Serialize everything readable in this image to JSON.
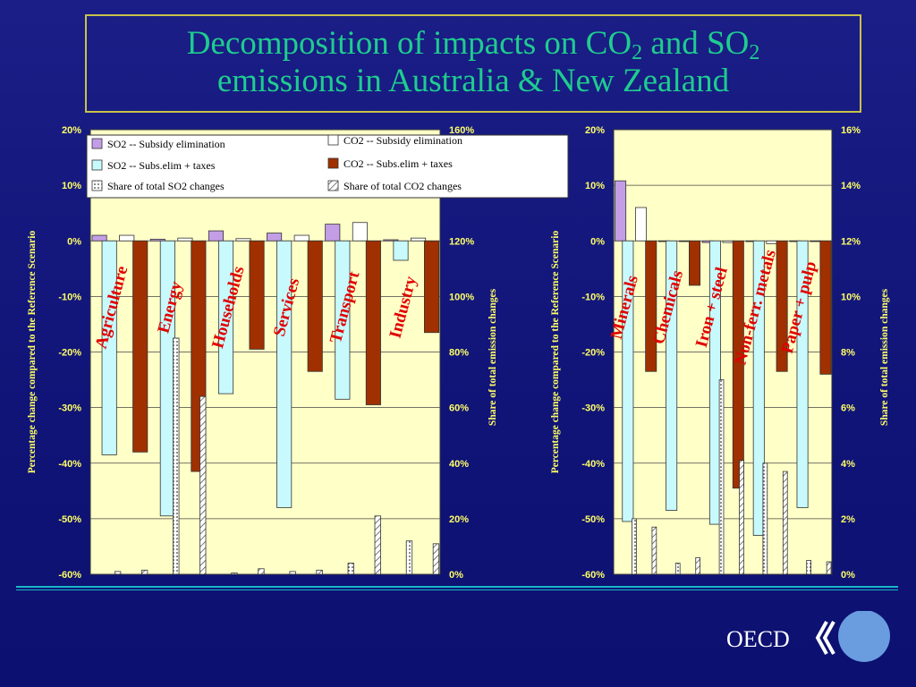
{
  "title": {
    "line1_pre": "Decomposition of impacts on CO",
    "line1_sub1": "2",
    "line1_mid": " and SO",
    "line1_sub2": "2",
    "line2": "emissions in Australia & New Zealand"
  },
  "logo_text": "OECD",
  "colors": {
    "title": "#1fcc8f",
    "title_border": "#c9c24a",
    "plot_bg": "#ffffc8",
    "axis_text": "#ffff66",
    "category_label": "#e00000",
    "so2_subsidy": "#c39ee6",
    "so2_taxes": "#c8fafd",
    "co2_subsidy": "#ffffff",
    "co2_taxes": "#a03000"
  },
  "chart_data": [
    {
      "type": "bar",
      "ylabel": "Percentage change compared to the Reference Scenario",
      "y2label": "Share of total emission changes",
      "ylim": [
        -60,
        20
      ],
      "y2lim": [
        0,
        160
      ],
      "yticks": [
        "20%",
        "10%",
        "0%",
        "-10%",
        "-20%",
        "-30%",
        "-40%",
        "-50%",
        "-60%"
      ],
      "y2ticks": [
        "160%",
        "140%",
        "120%",
        "100%",
        "80%",
        "60%",
        "40%",
        "20%",
        "0%"
      ],
      "legend": "top",
      "categories": [
        "Agriculture",
        "Energy",
        "Households",
        "Services",
        "Transport",
        "Industry"
      ],
      "series": [
        {
          "name": "SO2 -- Subsidy elimination",
          "axis": "left",
          "values": [
            1.0,
            0.3,
            1.8,
            1.4,
            3.0,
            0.2
          ]
        },
        {
          "name": "SO2 -- Subs.elim + taxes",
          "axis": "left",
          "values": [
            -38.5,
            -49.5,
            -27.5,
            -48,
            -28.5,
            -3.5
          ]
        },
        {
          "name": "Share of total SO2 changes",
          "axis": "right",
          "values": [
            1,
            85,
            0.5,
            1,
            4,
            12
          ]
        },
        {
          "name": "CO2 -- Subsidy elimination",
          "axis": "left",
          "values": [
            1.0,
            0.5,
            0.4,
            1.0,
            3.3,
            0.5
          ]
        },
        {
          "name": "CO2 -- Subs.elim + taxes",
          "axis": "left",
          "values": [
            -38,
            -41.5,
            -19.5,
            -23.5,
            -29.5,
            -16.5
          ]
        },
        {
          "name": "Share of total CO2 changes",
          "axis": "right",
          "values": [
            1.5,
            64,
            2,
            1.5,
            21,
            11
          ]
        }
      ]
    },
    {
      "type": "bar",
      "ylabel": "Percentage change compared to the Reference Scenario",
      "y2label": "Share of total emission changes",
      "ylim": [
        -60,
        20
      ],
      "y2lim": [
        0,
        16
      ],
      "yticks": [
        "20%",
        "10%",
        "0%",
        "-10%",
        "-20%",
        "-30%",
        "-40%",
        "-50%",
        "-60%"
      ],
      "y2ticks": [
        "16%",
        "14%",
        "12%",
        "10%",
        "8%",
        "6%",
        "4%",
        "2%",
        "0%"
      ],
      "categories": [
        "Minerals",
        "Chemicals",
        "Iron + steel",
        "Non-ferr. metals",
        "Paper + pulp"
      ],
      "series": [
        {
          "name": "SO2 -- Subsidy elimination",
          "axis": "left",
          "values": [
            10.8,
            0,
            -0.3,
            0,
            0
          ]
        },
        {
          "name": "SO2 -- Subs.elim + taxes",
          "axis": "left",
          "values": [
            -50.5,
            -48.5,
            -51,
            -53,
            -48
          ]
        },
        {
          "name": "Share of total SO2 changes",
          "axis": "right",
          "values": [
            2.0,
            0.4,
            7.0,
            4.0,
            0.5
          ]
        },
        {
          "name": "CO2 -- Subsidy elimination",
          "axis": "left",
          "values": [
            6.0,
            0,
            -0.3,
            -0.5,
            -0.1
          ]
        },
        {
          "name": "CO2 -- Subs.elim + taxes",
          "axis": "left",
          "values": [
            -23.5,
            -8,
            -44.5,
            -23.5,
            -24
          ]
        },
        {
          "name": "Share of total CO2 changes",
          "axis": "right",
          "values": [
            1.7,
            0.6,
            4.1,
            3.7,
            0.45
          ]
        }
      ]
    }
  ]
}
